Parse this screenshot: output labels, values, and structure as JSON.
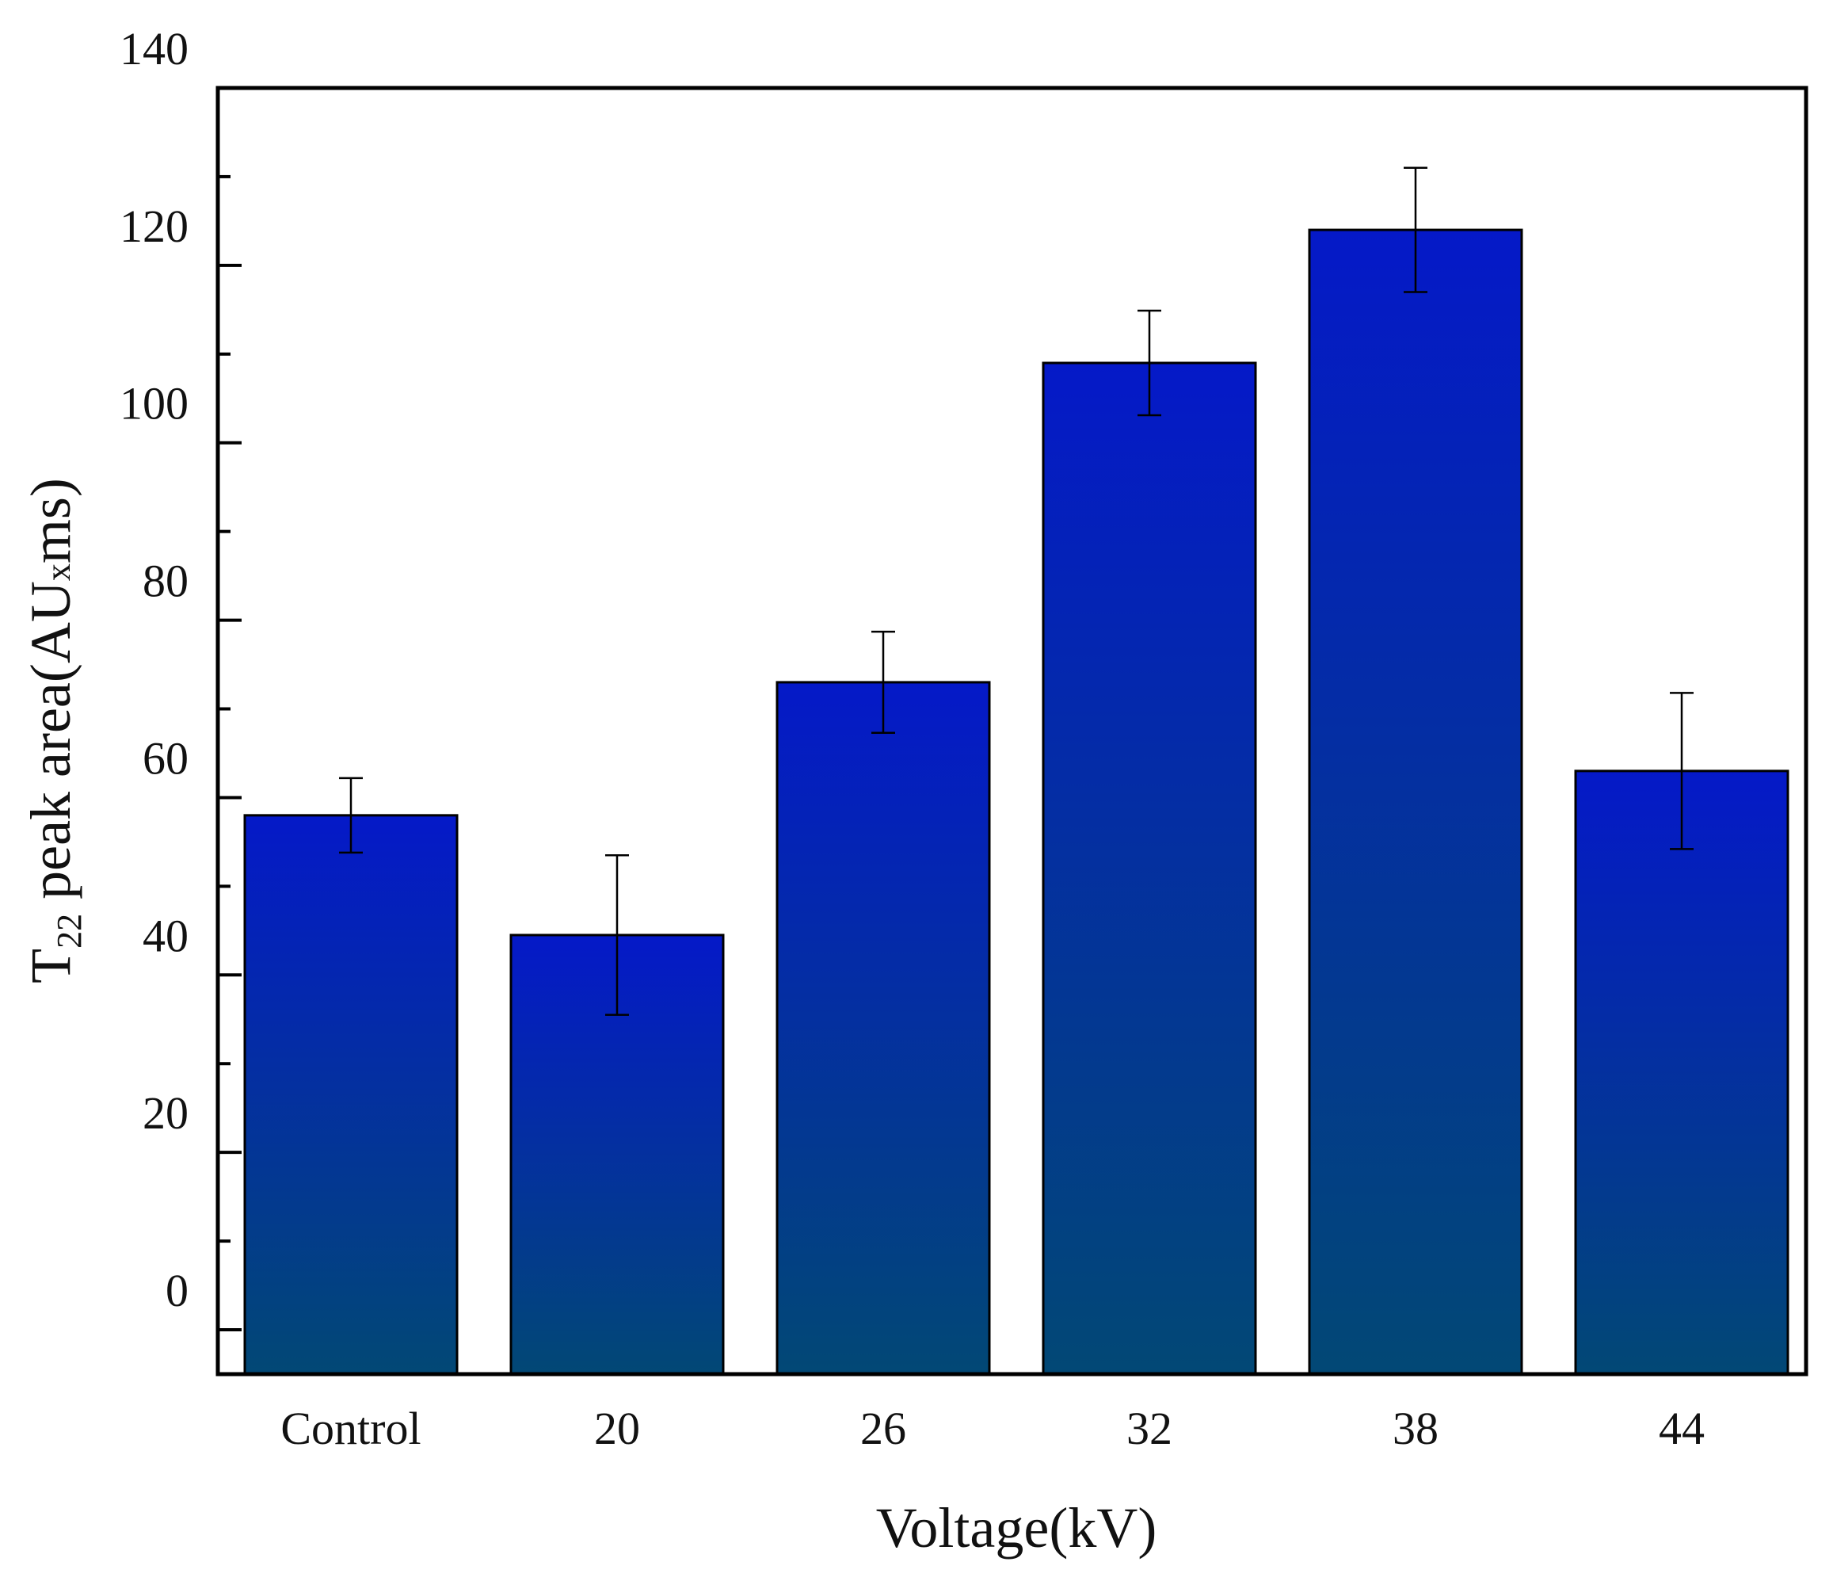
{
  "chart_data": {
    "type": "bar",
    "title": "",
    "xlabel": "Voltage(kV)",
    "ylabel": {
      "prefix": "T",
      "subscript": "22",
      "suffix": " peak area(AU",
      "small": "x",
      "tail": "ms)"
    },
    "categories": [
      "Control",
      "20",
      "26",
      "32",
      "38",
      "44"
    ],
    "values": [
      58,
      44.5,
      73,
      109,
      124,
      63
    ],
    "errors": [
      4.2,
      9,
      5.7,
      5.9,
      7,
      8.8
    ],
    "ylim": [
      -5,
      140
    ],
    "yticks": [
      0,
      20,
      40,
      60,
      80,
      100,
      120,
      140
    ],
    "ytick_labels": [
      "0",
      "20",
      "40",
      "60",
      "80",
      "100",
      "120",
      "140"
    ],
    "colors": {
      "bar_top": "#0519c8",
      "bar_bottom": "#024875",
      "edge": "#000000"
    }
  }
}
